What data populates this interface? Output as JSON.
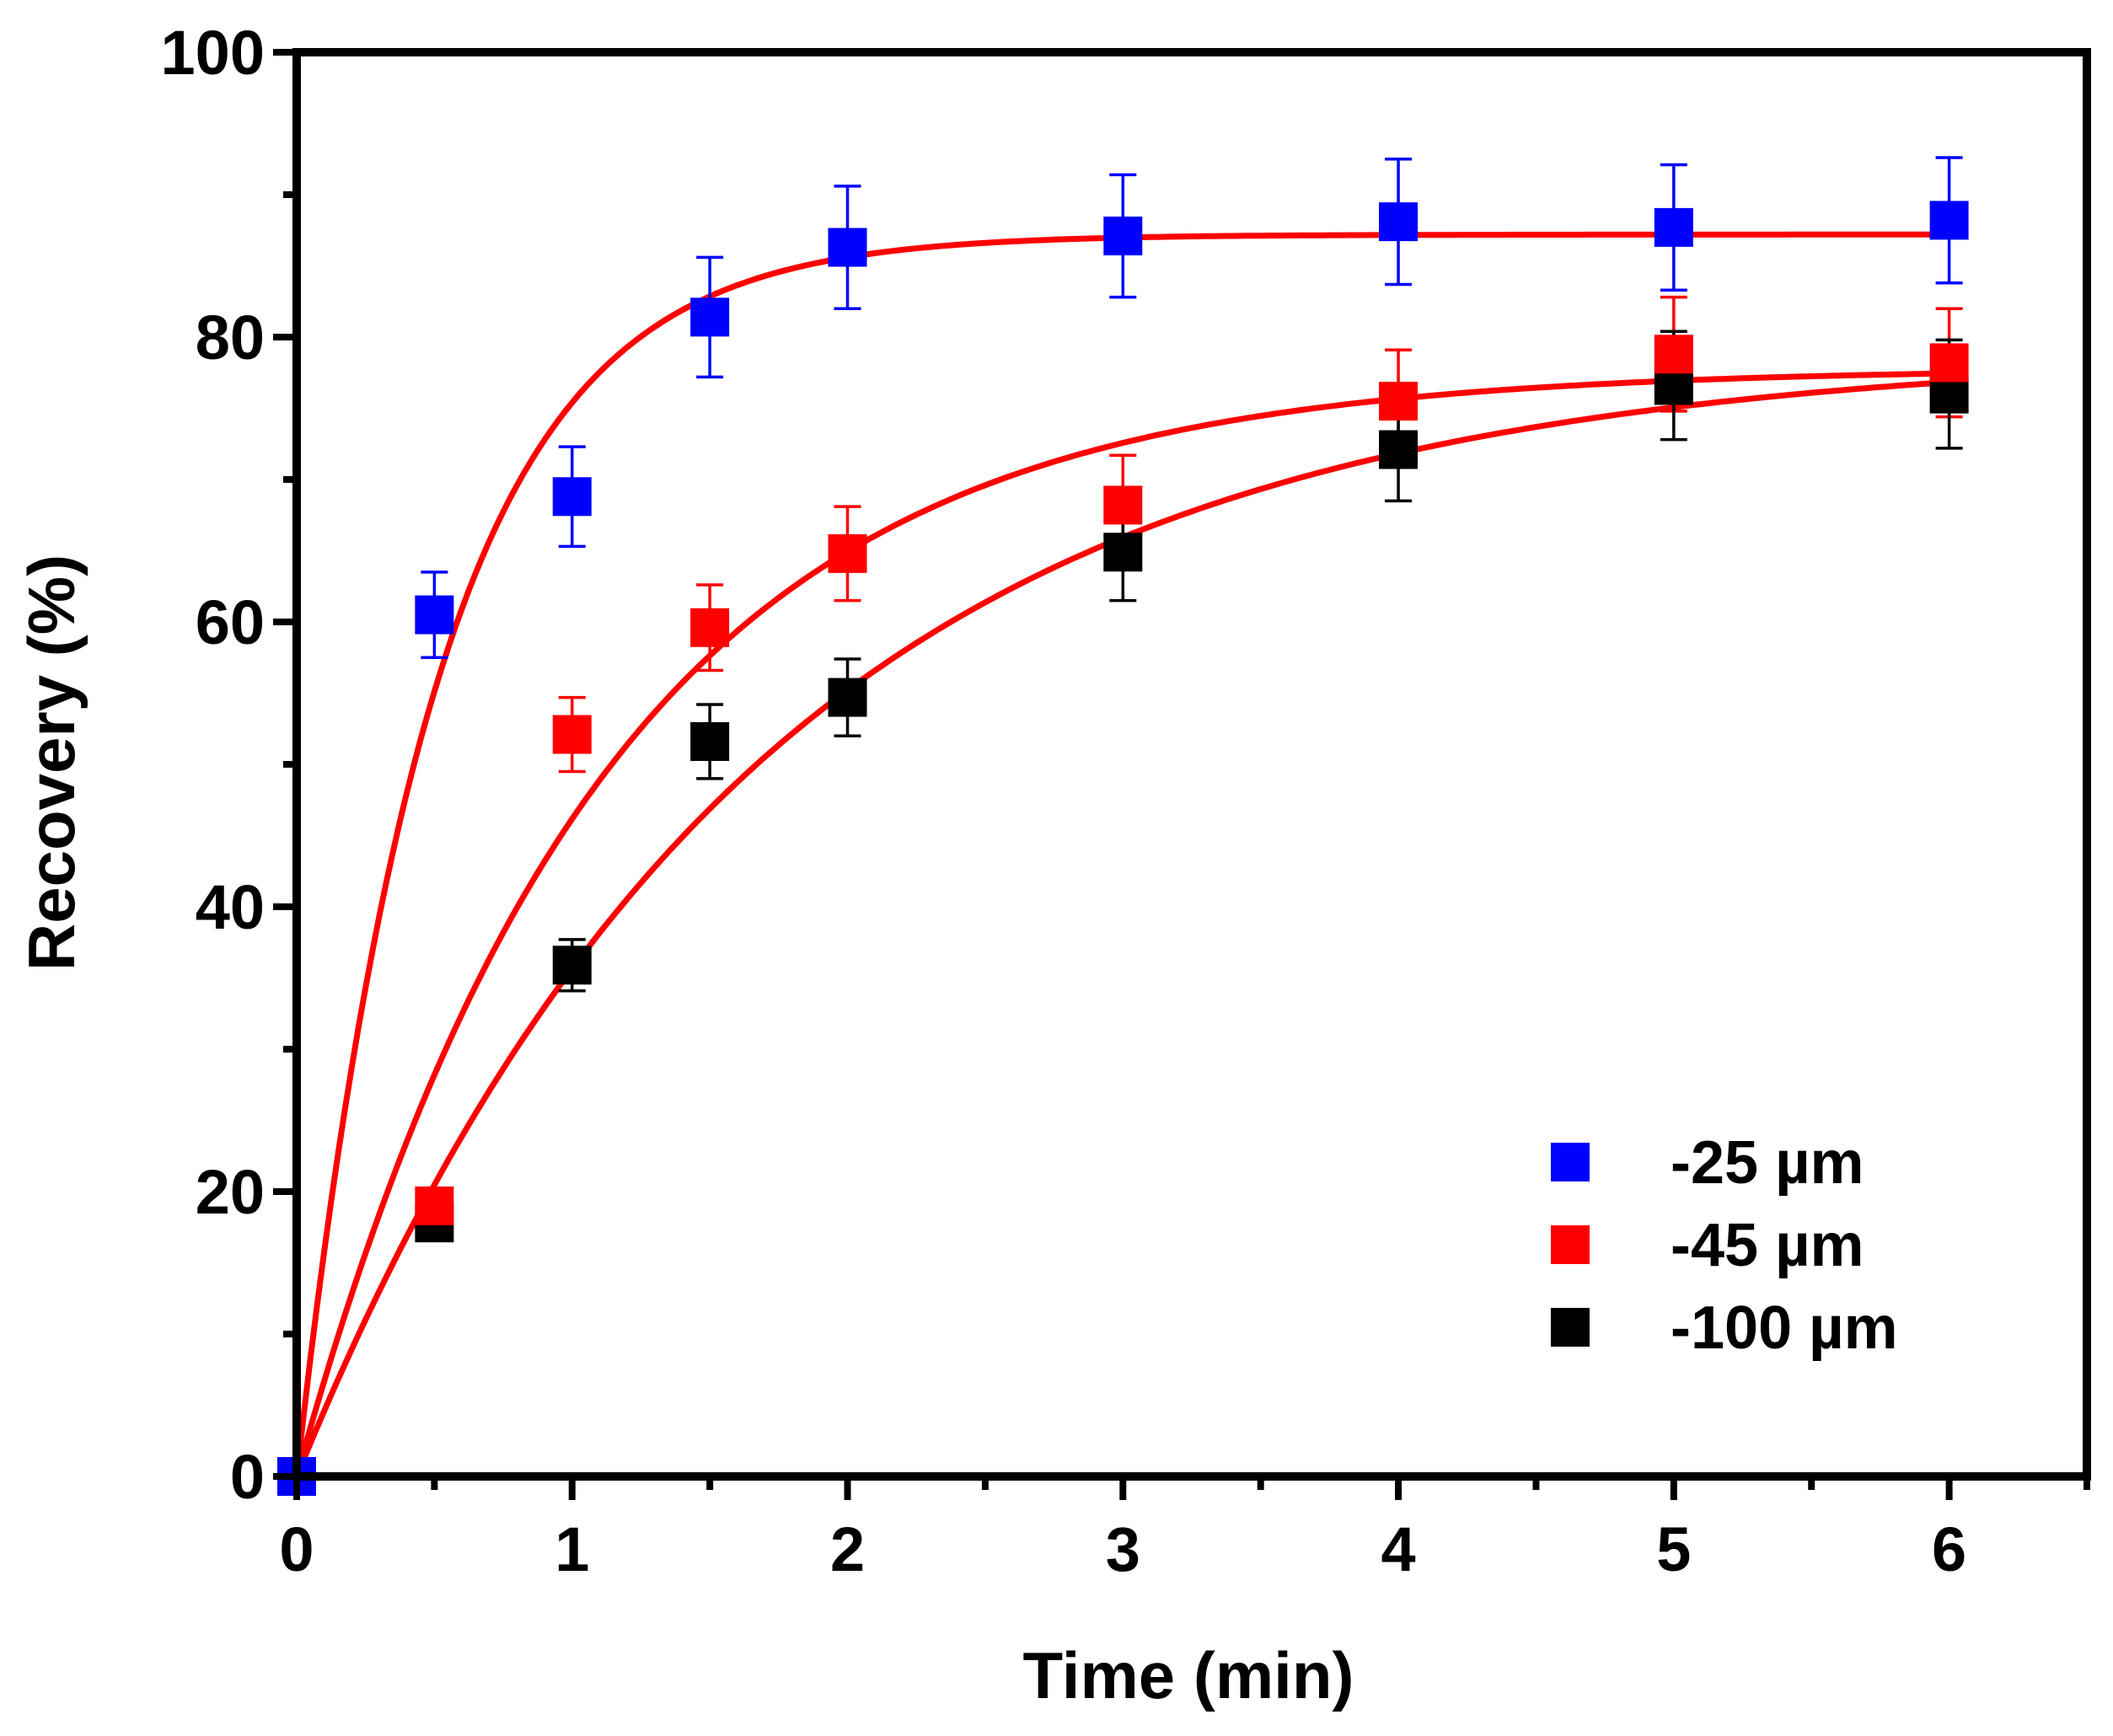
{
  "chart_data": {
    "type": "scatter",
    "title": "",
    "xlabel": "Time (min)",
    "ylabel": "Recovery (%)",
    "xlim": [
      0,
      6.5
    ],
    "ylim": [
      0,
      100
    ],
    "x_ticks": [
      0,
      1,
      2,
      3,
      4,
      5,
      6
    ],
    "x_tick_labels": [
      "0",
      "1",
      "2",
      "3",
      "4",
      "5",
      "6"
    ],
    "y_ticks": [
      0,
      20,
      40,
      60,
      80,
      100
    ],
    "y_tick_labels": [
      "0",
      "20",
      "40",
      "60",
      "80",
      "100"
    ],
    "grid": false,
    "legend_position": "bottom-right",
    "fit_color": "#ff0000",
    "series": [
      {
        "name": "-25 µm",
        "color": "#0000ff",
        "x": [
          0,
          0.5,
          1,
          1.5,
          2,
          3,
          4,
          5,
          6
        ],
        "y": [
          0,
          60.5,
          68.8,
          81.4,
          86.3,
          87.1,
          88.1,
          87.7,
          88.2
        ],
        "error": [
          0,
          3.0,
          3.5,
          4.2,
          4.3,
          4.3,
          4.4,
          4.4,
          4.4
        ],
        "fit": {
          "model": "first-order",
          "r_inf": 87.2,
          "k": 2.0
        }
      },
      {
        "name": "-45 µm",
        "color": "#ff0000",
        "x": [
          0,
          0.5,
          1,
          1.5,
          2,
          3,
          4,
          5,
          6
        ],
        "y": [
          0,
          19.0,
          52.1,
          59.6,
          64.8,
          68.2,
          75.5,
          78.8,
          78.2
        ],
        "error": [
          0,
          0,
          2.6,
          3.0,
          3.3,
          3.5,
          3.6,
          4.0,
          3.8
        ],
        "fit": {
          "model": "first-order",
          "r_inf": 77.8,
          "k": 0.9
        }
      },
      {
        "name": "-100 µm",
        "color": "#000000",
        "x": [
          0,
          0.5,
          1,
          1.5,
          2,
          3,
          4,
          5,
          6
        ],
        "y": [
          0,
          17.8,
          35.9,
          51.6,
          54.7,
          64.9,
          72.1,
          76.6,
          76.0
        ],
        "error": [
          0,
          0,
          1.8,
          2.6,
          2.7,
          3.4,
          3.6,
          3.8,
          3.8
        ],
        "fit": {
          "model": "first-order",
          "r_inf": 79.0,
          "k": 0.6
        }
      }
    ]
  }
}
